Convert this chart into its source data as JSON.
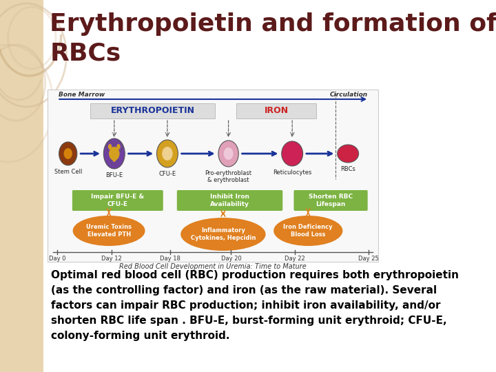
{
  "title_line1": "Erythropoietin and formation of",
  "title_line2": "RBCs",
  "title_color": "#5C1A1A",
  "title_fontsize": 26,
  "bg_color": "#FFFFFF",
  "sidebar_color": "#E8D5B0",
  "sidebar_circle_color": "#D4B896",
  "body_text_line1": "Optimal red blood cell (RBC) production requires both erythropoietin",
  "body_text_line2": "(as the controlling factor) and iron (as the raw material). Several",
  "body_text_line3": "factors can impair RBC production; inhibit iron availability, and/or",
  "body_text_line4": "shorten RBC life span . BFU-E, burst-forming unit erythroid; CFU-E,",
  "body_text_line5": "colony-forming unit erythroid.",
  "body_text_color": "#000000",
  "body_fontsize": 11,
  "diagram_bg": "#F8F8F8",
  "diagram_border": "#CCCCCC",
  "arrow_color": "#1A3399",
  "epo_bg": "#D8D8D8",
  "epo_text_color": "#1A3399",
  "iron_text_color": "#CC2222",
  "green_box_color": "#7CB342",
  "orange_ellipse_color": "#E08020",
  "cell_colors": [
    "#8B3A10",
    "#7B4A8A",
    "#D4A020",
    "#DDA0B0",
    "#CC2255",
    "#CC2244"
  ],
  "day_labels": [
    "Day 0",
    "Day 12",
    "Day 18",
    "Day 20",
    "Day 22",
    "Day 25"
  ],
  "cell_labels": [
    "Stem Cell",
    "BFU-E",
    "CFU-E",
    "Pro-erythroblast\n& erythroblast",
    "Reticulocytes",
    "RBCs"
  ]
}
